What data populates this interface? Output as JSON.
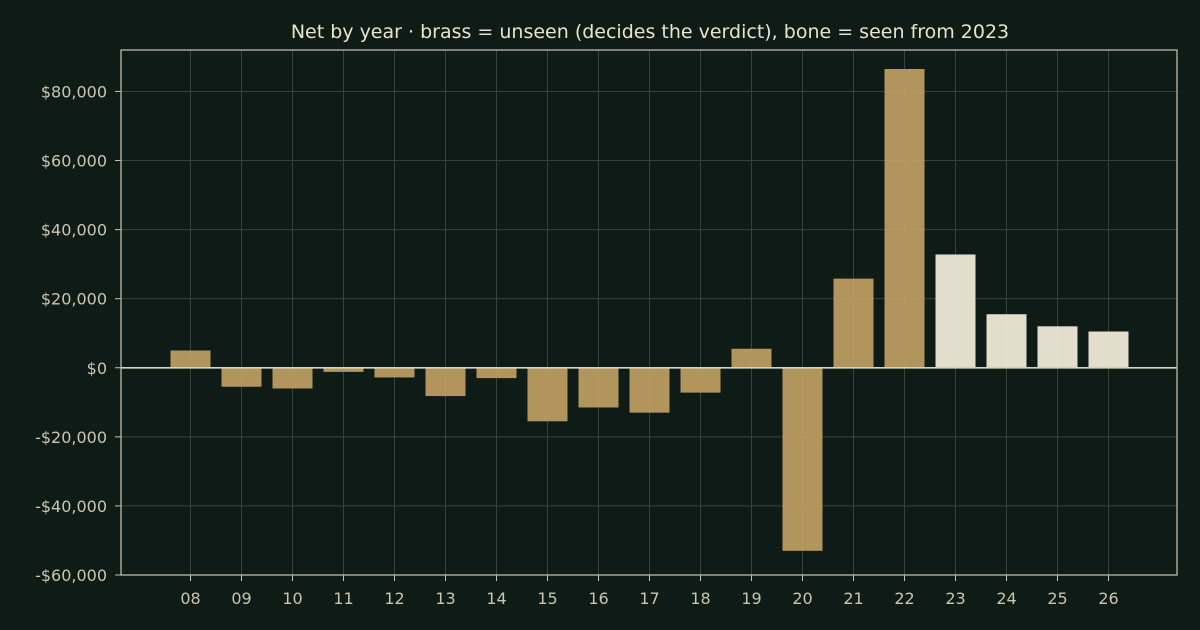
{
  "chart_data": {
    "type": "bar",
    "title": "Net by year  ·  brass = unseen (decides the verdict), bone = seen from 2023",
    "xlabel": "",
    "ylabel": "",
    "ylim": [
      -60000,
      92000
    ],
    "yticks": [
      -60000,
      -40000,
      -20000,
      0,
      20000,
      40000,
      60000,
      80000
    ],
    "ytick_labels": [
      "-$60,000",
      "-$40,000",
      "-$20,000",
      "$0",
      "$20,000",
      "$40,000",
      "$60,000",
      "$80,000"
    ],
    "grid": true,
    "categories": [
      "08",
      "09",
      "10",
      "11",
      "12",
      "13",
      "14",
      "15",
      "16",
      "17",
      "18",
      "19",
      "20",
      "21",
      "22",
      "23",
      "24",
      "25",
      "26"
    ],
    "values": [
      5000,
      -5500,
      -6000,
      -1200,
      -2800,
      -8200,
      -3000,
      -15500,
      -11500,
      -13000,
      -7200,
      5500,
      -53000,
      25800,
      86500,
      32800,
      15500,
      12000,
      10500
    ],
    "bar_groups": [
      "unseen",
      "unseen",
      "unseen",
      "unseen",
      "unseen",
      "unseen",
      "unseen",
      "unseen",
      "unseen",
      "unseen",
      "unseen",
      "unseen",
      "unseen",
      "unseen",
      "unseen",
      "seen",
      "seen",
      "seen",
      "seen"
    ],
    "colors": {
      "unseen": "#b99a60",
      "seen": "#ebe5d4",
      "background": "#0f1b16",
      "grid": "#34463c",
      "axis": "#c9c5b2",
      "text": "#e8e3d0"
    }
  }
}
